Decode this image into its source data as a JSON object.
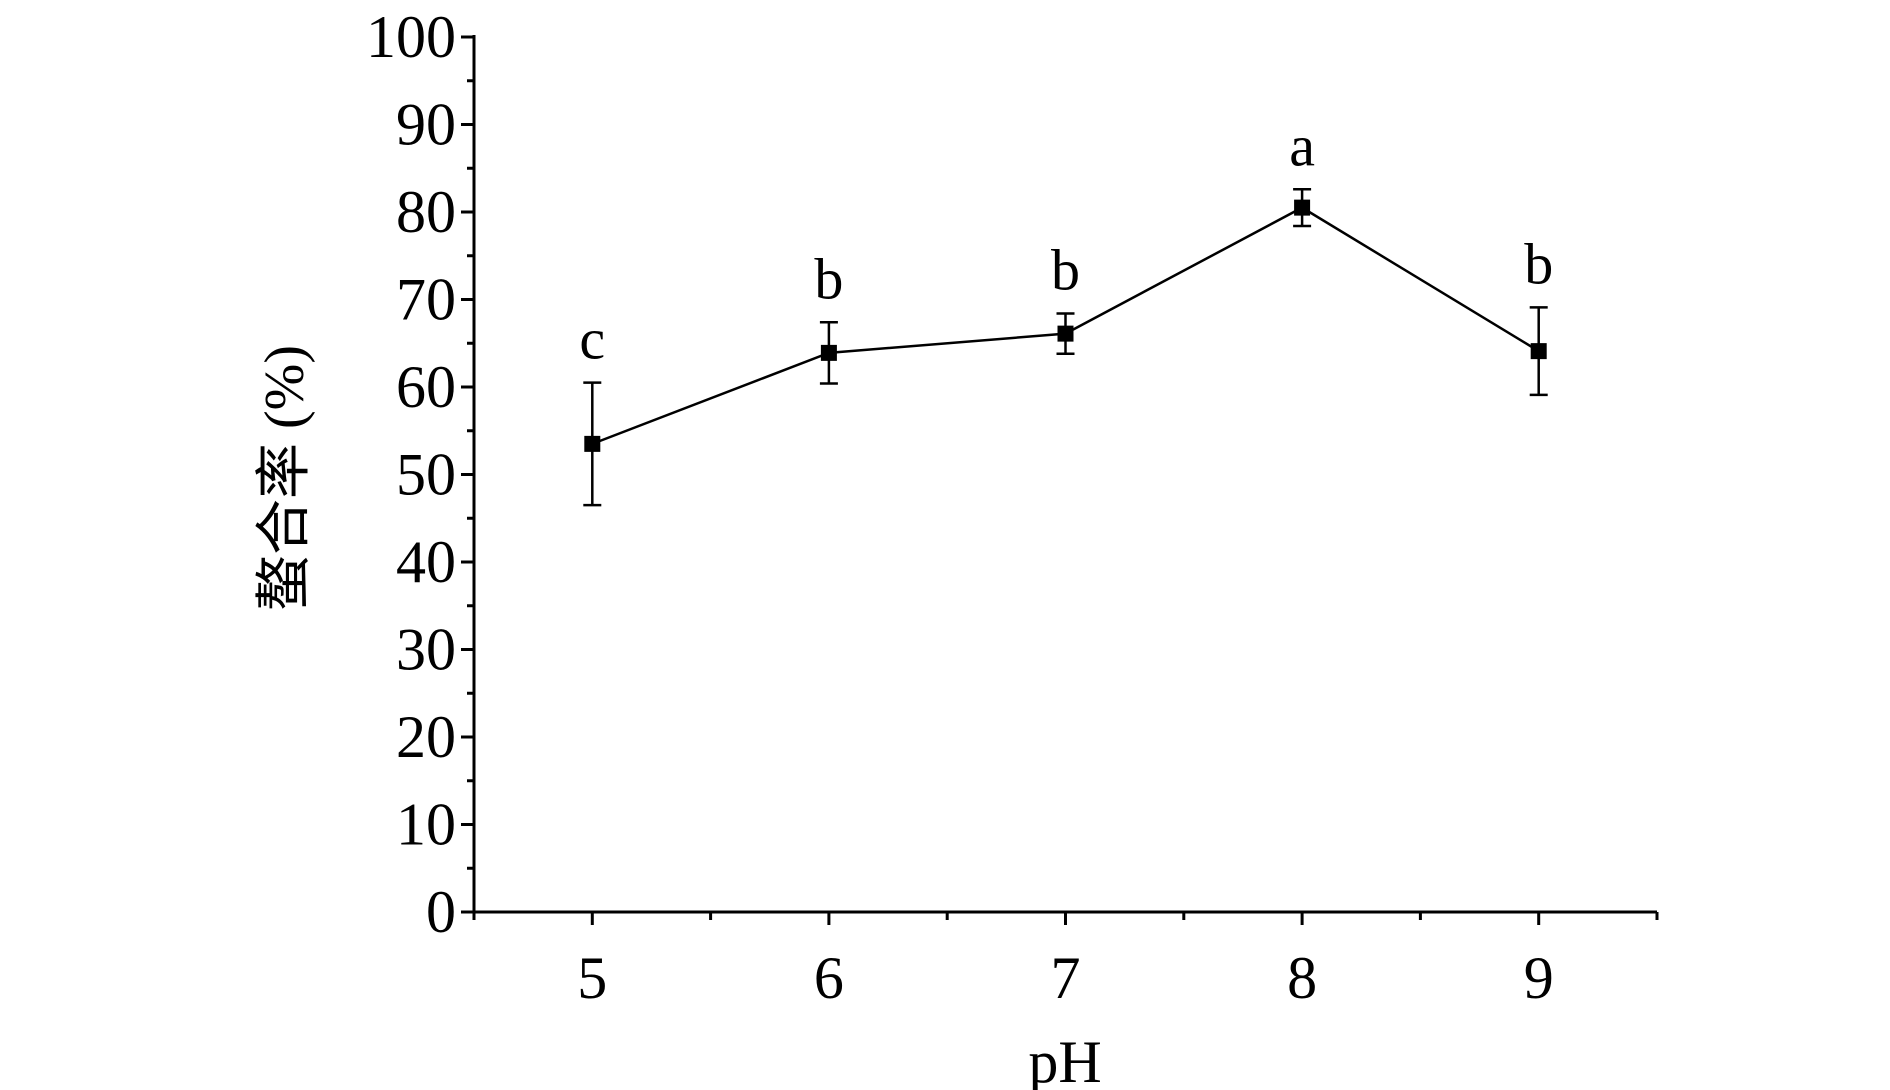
{
  "chart_data": {
    "type": "line",
    "title": "",
    "xlabel": "pH",
    "ylabel": "螯合率 (%)",
    "xlim": [
      4.5,
      9.5
    ],
    "ylim": [
      0,
      100
    ],
    "x_ticks": [
      "5",
      "6",
      "7",
      "8",
      "9"
    ],
    "y_ticks": [
      "0",
      "10",
      "20",
      "30",
      "40",
      "50",
      "60",
      "70",
      "80",
      "90",
      "100"
    ],
    "grid": false,
    "legend": "none",
    "series": [
      {
        "x": [
          5,
          6,
          7,
          8,
          9
        ],
        "y": [
          53.5,
          63.9,
          66.1,
          80.5,
          64.1
        ],
        "error": [
          7.0,
          3.5,
          2.3,
          2.1,
          5.0
        ],
        "labels": [
          "c",
          "b",
          "b",
          "a",
          "b"
        ],
        "color": "#000000",
        "marker": "square"
      }
    ]
  }
}
